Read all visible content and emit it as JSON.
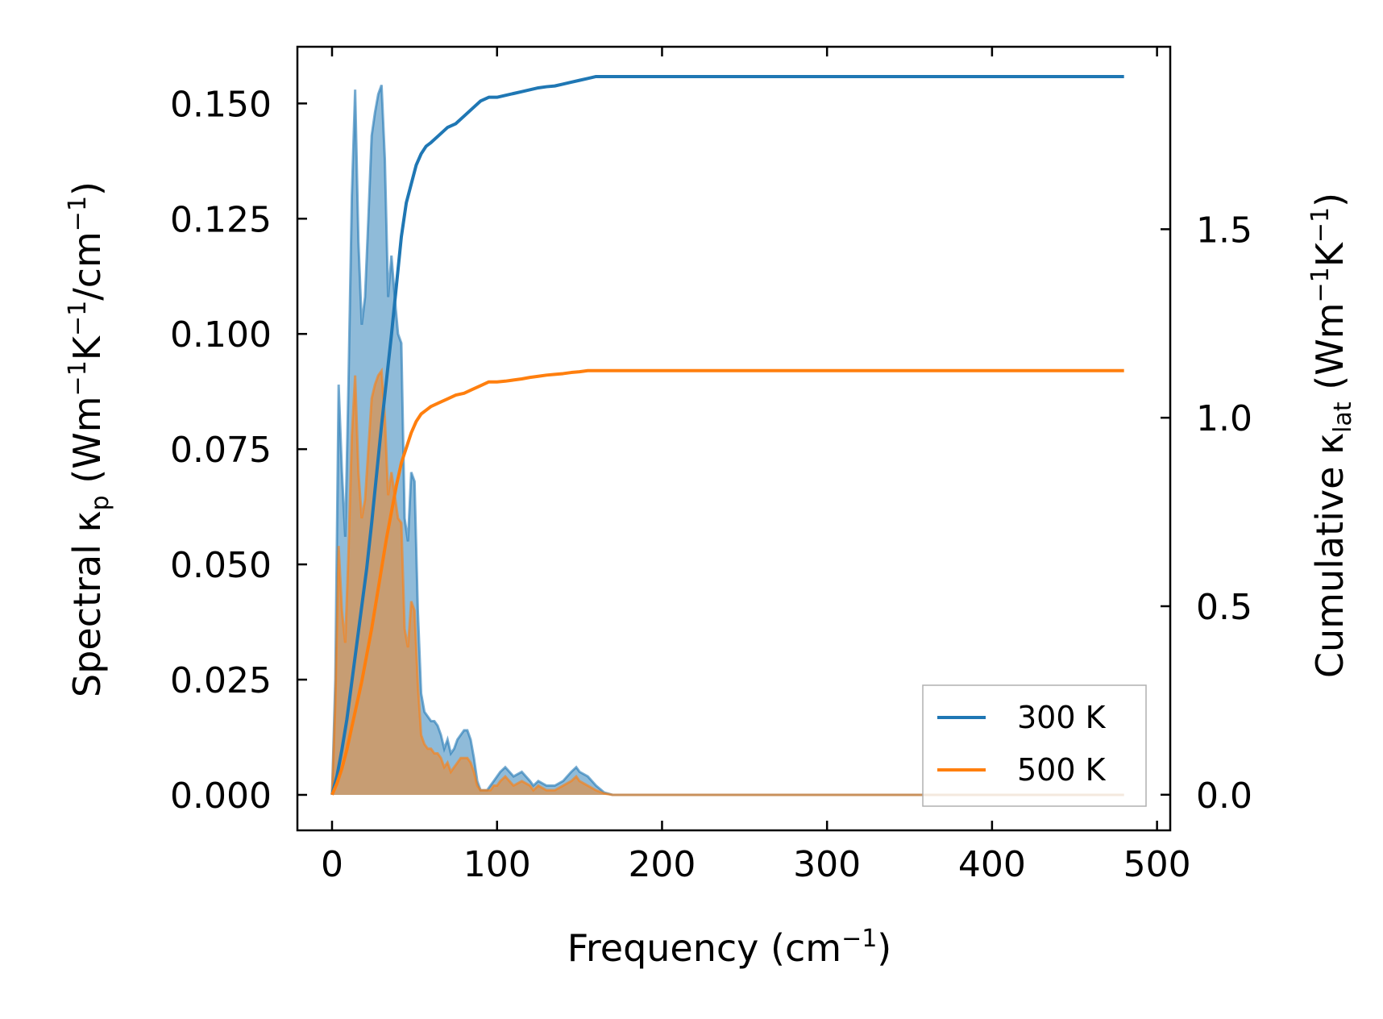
{
  "chart_data": {
    "type": "line",
    "x_axis": {
      "label": "Frequency (cm",
      "label_sup": "−1",
      "label_end": ")",
      "range": [
        -21,
        508
      ],
      "ticks": [
        0,
        100,
        200,
        300,
        400,
        500
      ],
      "tick_labels": [
        "0",
        "100",
        "200",
        "300",
        "400",
        "500"
      ]
    },
    "y_axis_left": {
      "label_main": "Spectral κ",
      "label_sub": "p",
      "label_rest": " (Wm",
      "label_sup1": "−1",
      "label_k": "K",
      "label_sup2": "−1",
      "label_cm": "/cm",
      "label_sup3": "−1",
      "label_end": ")",
      "range": [
        -0.0077,
        0.1623
      ],
      "ticks": [
        0.0,
        0.025,
        0.05,
        0.075,
        0.1,
        0.125,
        0.15
      ],
      "tick_labels": [
        "0.000",
        "0.025",
        "0.050",
        "0.075",
        "0.100",
        "0.125",
        "0.150"
      ]
    },
    "y_axis_right": {
      "label_main": "Cumulative κ",
      "label_sub": "lat",
      "label_rest": " (Wm",
      "label_sup1": "−1",
      "label_k": "K",
      "label_sup2": "−1",
      "label_end": ")",
      "range": [
        -0.0945,
        1.984
      ],
      "ticks": [
        0.0,
        0.5,
        1.0,
        1.5
      ],
      "tick_labels": [
        "0.0",
        "0.5",
        "1.0",
        "1.5"
      ]
    },
    "legend": {
      "position": "lower-right",
      "entries": [
        {
          "label": "300 K",
          "color": "#1f77b4"
        },
        {
          "label": "500 K",
          "color": "#ff7f0e"
        }
      ]
    },
    "series": [
      {
        "name": "300 K",
        "color": "#1f77b4",
        "spectral": {
          "x": [
            0,
            2,
            4,
            6,
            8,
            10,
            12,
            14,
            16,
            18,
            20,
            22,
            24,
            26,
            28,
            30,
            32,
            34,
            36,
            38,
            40,
            42,
            44,
            46,
            48,
            50,
            52,
            54,
            56,
            58,
            60,
            62,
            64,
            66,
            68,
            70,
            72,
            74,
            76,
            78,
            80,
            82,
            84,
            86,
            88,
            90,
            92,
            94,
            96,
            98,
            100,
            102,
            105,
            110,
            115,
            120,
            122,
            125,
            130,
            135,
            140,
            145,
            148,
            150,
            155,
            160,
            165,
            170,
            480
          ],
          "y": [
            0.0,
            0.025,
            0.089,
            0.07,
            0.056,
            0.09,
            0.13,
            0.153,
            0.12,
            0.102,
            0.108,
            0.125,
            0.143,
            0.148,
            0.152,
            0.154,
            0.138,
            0.108,
            0.117,
            0.108,
            0.1,
            0.098,
            0.06,
            0.055,
            0.07,
            0.068,
            0.04,
            0.022,
            0.018,
            0.017,
            0.016,
            0.016,
            0.015,
            0.013,
            0.01,
            0.012,
            0.009,
            0.01,
            0.012,
            0.013,
            0.014,
            0.014,
            0.012,
            0.008,
            0.003,
            0.001,
            0.001,
            0.001,
            0.002,
            0.003,
            0.004,
            0.005,
            0.006,
            0.004,
            0.005,
            0.003,
            0.002,
            0.003,
            0.002,
            0.002,
            0.003,
            0.005,
            0.006,
            0.005,
            0.004,
            0.002,
            0.0005,
            0.0,
            0.0
          ]
        },
        "cumulative": {
          "x": [
            0,
            3,
            6,
            9,
            12,
            15,
            18,
            21,
            24,
            27,
            30,
            33,
            36,
            39,
            42,
            45,
            48,
            51,
            54,
            57,
            60,
            65,
            70,
            75,
            80,
            85,
            90,
            95,
            100,
            105,
            110,
            115,
            120,
            125,
            130,
            135,
            140,
            145,
            150,
            155,
            160,
            165,
            170,
            480
          ],
          "y": [
            0.0,
            0.05,
            0.12,
            0.2,
            0.3,
            0.4,
            0.5,
            0.6,
            0.72,
            0.85,
            0.98,
            1.1,
            1.22,
            1.35,
            1.48,
            1.57,
            1.62,
            1.67,
            1.7,
            1.72,
            1.73,
            1.75,
            1.77,
            1.78,
            1.8,
            1.82,
            1.84,
            1.85,
            1.85,
            1.855,
            1.86,
            1.865,
            1.87,
            1.875,
            1.878,
            1.88,
            1.885,
            1.89,
            1.895,
            1.9,
            1.905,
            1.905,
            1.905,
            1.905
          ]
        }
      },
      {
        "name": "500 K",
        "color": "#ff7f0e",
        "spectral": {
          "x": [
            0,
            2,
            4,
            6,
            8,
            10,
            12,
            14,
            16,
            18,
            20,
            22,
            24,
            26,
            28,
            30,
            32,
            34,
            36,
            38,
            40,
            42,
            44,
            46,
            48,
            50,
            52,
            54,
            56,
            58,
            60,
            62,
            64,
            66,
            68,
            70,
            72,
            74,
            76,
            78,
            80,
            82,
            84,
            86,
            88,
            90,
            92,
            94,
            96,
            98,
            100,
            102,
            105,
            110,
            115,
            120,
            122,
            125,
            130,
            135,
            140,
            145,
            148,
            150,
            155,
            160,
            165,
            170,
            480
          ],
          "y": [
            0.0,
            0.02,
            0.054,
            0.04,
            0.033,
            0.053,
            0.078,
            0.091,
            0.07,
            0.06,
            0.064,
            0.075,
            0.086,
            0.089,
            0.091,
            0.092,
            0.082,
            0.065,
            0.07,
            0.065,
            0.06,
            0.059,
            0.036,
            0.032,
            0.042,
            0.04,
            0.024,
            0.013,
            0.011,
            0.01,
            0.01,
            0.009,
            0.009,
            0.008,
            0.006,
            0.007,
            0.005,
            0.006,
            0.007,
            0.008,
            0.008,
            0.008,
            0.007,
            0.005,
            0.002,
            0.001,
            0.001,
            0.001,
            0.001,
            0.002,
            0.002,
            0.003,
            0.004,
            0.002,
            0.003,
            0.002,
            0.001,
            0.002,
            0.001,
            0.001,
            0.002,
            0.003,
            0.004,
            0.003,
            0.002,
            0.001,
            0.0003,
            0.0,
            0.0
          ]
        },
        "cumulative": {
          "x": [
            0,
            3,
            6,
            9,
            12,
            15,
            18,
            21,
            24,
            27,
            30,
            33,
            36,
            39,
            42,
            45,
            48,
            51,
            54,
            57,
            60,
            65,
            70,
            75,
            80,
            85,
            90,
            95,
            100,
            105,
            110,
            115,
            120,
            125,
            130,
            135,
            140,
            145,
            150,
            155,
            160,
            165,
            170,
            480
          ],
          "y": [
            0.0,
            0.03,
            0.07,
            0.12,
            0.18,
            0.24,
            0.3,
            0.37,
            0.44,
            0.52,
            0.6,
            0.68,
            0.75,
            0.82,
            0.88,
            0.92,
            0.96,
            0.99,
            1.01,
            1.02,
            1.03,
            1.04,
            1.05,
            1.06,
            1.065,
            1.075,
            1.085,
            1.095,
            1.095,
            1.097,
            1.1,
            1.103,
            1.107,
            1.11,
            1.113,
            1.115,
            1.117,
            1.12,
            1.122,
            1.125,
            1.125,
            1.125,
            1.125,
            1.125
          ]
        }
      }
    ]
  }
}
